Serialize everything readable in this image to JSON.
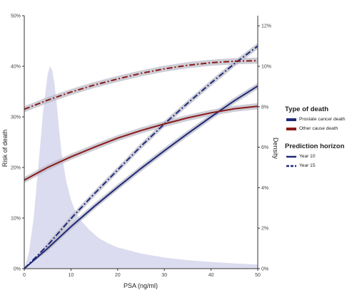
{
  "chart_data": {
    "type": "line",
    "x": [
      0,
      5,
      10,
      15,
      20,
      25,
      30,
      35,
      40,
      45,
      50
    ],
    "xlabel": "PSA (ng/ml)",
    "xlim": [
      0,
      50
    ],
    "xticks": [
      0,
      10,
      20,
      30,
      40,
      50
    ],
    "ylabel": "Risk of death",
    "ylim": [
      0,
      50
    ],
    "yticks": [
      "0%",
      "10%",
      "20%",
      "30%",
      "40%",
      "50%"
    ],
    "y2label": "Density",
    "y2lim": [
      0,
      12.5
    ],
    "y2ticks": [
      "0%",
      "2%",
      "4%",
      "6%",
      "8%",
      "10%",
      "12%"
    ],
    "series": [
      {
        "type_of_death": "Prostate cancer death",
        "horizon": "Year 10",
        "color": "#1f2a78",
        "dash": "solid",
        "values": [
          -0.6,
          4.0,
          8.3,
          12.3,
          16.1,
          19.8,
          23.3,
          26.7,
          30.0,
          33.2,
          36.1
        ]
      },
      {
        "type_of_death": "Prostate cancer death",
        "horizon": "Year 15",
        "color": "#1f2a78",
        "dash": "dashdot",
        "values": [
          -1.0,
          4.6,
          9.9,
          14.8,
          19.5,
          24.2,
          28.6,
          32.7,
          36.7,
          40.5,
          44.0
        ]
      },
      {
        "type_of_death": "Other cause death",
        "horizon": "Year 10",
        "color": "#8b1a1a",
        "dash": "solid",
        "values": [
          17.5,
          20.0,
          22.1,
          24.0,
          25.8,
          27.3,
          28.6,
          29.8,
          30.8,
          31.6,
          32.1
        ]
      },
      {
        "type_of_death": "Other cause death",
        "horizon": "Year 15",
        "color": "#8b1a1a",
        "dash": "dashdot",
        "values": [
          31.5,
          33.3,
          34.9,
          36.3,
          37.5,
          38.6,
          39.5,
          40.2,
          40.7,
          41.0,
          41.1
        ]
      }
    ],
    "density": {
      "color": "#dcdcf0",
      "x": [
        0,
        1,
        2,
        3,
        4,
        5,
        5.5,
        6,
        6.5,
        7,
        7.5,
        8,
        9,
        10,
        11,
        12,
        14,
        16,
        18,
        20,
        25,
        30,
        35,
        40,
        45,
        50
      ],
      "values": [
        0,
        0.8,
        2.5,
        5.0,
        7.7,
        9.6,
        10.0,
        9.8,
        9.1,
        8.0,
        6.8,
        5.7,
        4.3,
        3.4,
        2.8,
        2.4,
        1.9,
        1.5,
        1.25,
        1.05,
        0.75,
        0.55,
        0.42,
        0.33,
        0.26,
        0.2
      ]
    }
  },
  "legend": {
    "type_title": "Type of death",
    "type_items": [
      {
        "label": "Prostate cancer death",
        "color": "#1f2a78"
      },
      {
        "label": "Other cause death",
        "color": "#8b1a1a"
      }
    ],
    "horizon_title": "Prediction horizon",
    "horizon_items": [
      {
        "label": "Year 10",
        "color": "#1f2a78",
        "style": "solid"
      },
      {
        "label": "Year 15",
        "color": "#1f2a78",
        "style": "dashed"
      }
    ]
  }
}
